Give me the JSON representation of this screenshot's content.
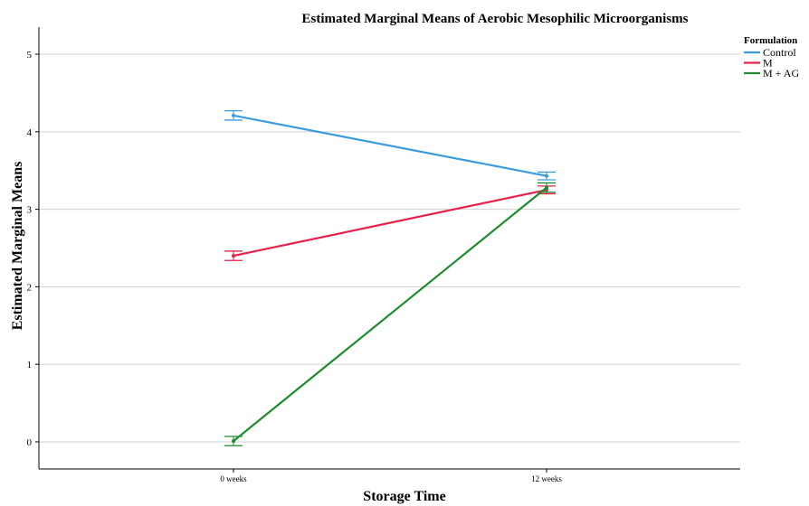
{
  "chart_data": {
    "type": "line",
    "title": "Estimated Marginal Means of Aerobic Mesophilic Microorganisms",
    "xlabel": "Storage Time",
    "ylabel": "Estimated Marginal Means",
    "categories": [
      "0 weeks",
      "12 weeks"
    ],
    "ylim": [
      -0.35,
      5.35
    ],
    "yticks": [
      0,
      1,
      2,
      3,
      4,
      5
    ],
    "grid": true,
    "legend_title": "Formulation",
    "legend_position": "top-right",
    "series": [
      {
        "name": "Control",
        "color": "#3a9ce0",
        "values": [
          4.21,
          3.43
        ],
        "error": [
          0.06,
          0.05
        ]
      },
      {
        "name": "M",
        "color": "#e8204a",
        "values": [
          2.4,
          3.25
        ],
        "error": [
          0.06,
          0.05
        ]
      },
      {
        "name": "M + AG",
        "color": "#1e8c2e",
        "values": [
          0.01,
          3.28
        ],
        "error": [
          0.06,
          0.06
        ]
      }
    ]
  }
}
